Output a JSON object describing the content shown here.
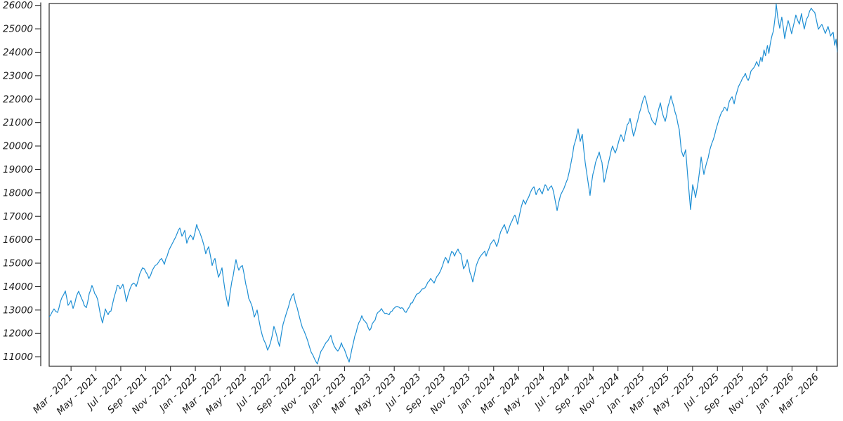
{
  "chart_data": {
    "type": "line",
    "title": "",
    "legend": null,
    "grid": false,
    "line_color": "#1E8FD4",
    "frame_color": "#2b2b2b",
    "text_color": "#1a1a1a",
    "x_axis": {
      "unit": "months_since_2021_01",
      "tick_step_months": 2,
      "first_tick_t": 2,
      "tick_labels": [
        "Mar - 2021",
        "May - 2021",
        "Jul - 2021",
        "Sep - 2021",
        "Nov - 2021",
        "Jan - 2022",
        "Mar - 2022",
        "May - 2022",
        "Jul - 2022",
        "Sep - 2022",
        "Nov - 2022",
        "Jan - 2023",
        "Mar - 2023",
        "May - 2023",
        "Jul - 2023",
        "Sep - 2023",
        "Nov - 2023",
        "Jan - 2024",
        "Mar - 2024",
        "May - 2024",
        "Jul - 2024",
        "Sep - 2024",
        "Nov - 2024",
        "Jan - 2025",
        "Mar - 2025",
        "May - 2025",
        "Jul - 2025",
        "Sep - 2025",
        "Nov - 2025",
        "Jan - 2026",
        "Mar - 2026"
      ]
    },
    "y_axis": {
      "ticks": [
        11000,
        12000,
        13000,
        14000,
        15000,
        16000,
        17000,
        18000,
        19000,
        20000,
        21000,
        22000,
        23000,
        24000,
        25000,
        26000
      ]
    },
    "xlim": [
      0.24,
      63.65
    ],
    "ylim": [
      10600,
      26080
    ],
    "noise_amplitude": 60,
    "noise_seed": 42,
    "points": [
      [
        0.24,
        12700
      ],
      [
        0.63,
        13050
      ],
      [
        0.92,
        12900
      ],
      [
        1.14,
        13350
      ],
      [
        1.54,
        13815
      ],
      [
        1.76,
        13200
      ],
      [
        1.99,
        13400
      ],
      [
        2.16,
        13070
      ],
      [
        2.44,
        13600
      ],
      [
        2.61,
        13800
      ],
      [
        2.84,
        13500
      ],
      [
        3.06,
        13200
      ],
      [
        3.23,
        13100
      ],
      [
        3.46,
        13700
      ],
      [
        3.68,
        14050
      ],
      [
        3.91,
        13700
      ],
      [
        4.14,
        13450
      ],
      [
        4.36,
        12800
      ],
      [
        4.53,
        12450
      ],
      [
        4.76,
        13050
      ],
      [
        4.98,
        12800
      ],
      [
        5.21,
        12950
      ],
      [
        5.49,
        13600
      ],
      [
        5.72,
        14060
      ],
      [
        5.94,
        13900
      ],
      [
        6.17,
        14100
      ],
      [
        6.45,
        13360
      ],
      [
        6.74,
        13900
      ],
      [
        7.02,
        14150
      ],
      [
        7.24,
        14000
      ],
      [
        7.53,
        14550
      ],
      [
        7.75,
        14800
      ],
      [
        8.04,
        14600
      ],
      [
        8.26,
        14350
      ],
      [
        8.54,
        14700
      ],
      [
        8.77,
        14900
      ],
      [
        9.05,
        15050
      ],
      [
        9.28,
        15200
      ],
      [
        9.51,
        14950
      ],
      [
        9.73,
        15300
      ],
      [
        10.01,
        15700
      ],
      [
        10.3,
        16000
      ],
      [
        10.52,
        16250
      ],
      [
        10.75,
        16500
      ],
      [
        10.92,
        16150
      ],
      [
        11.15,
        16400
      ],
      [
        11.31,
        15850
      ],
      [
        11.6,
        16200
      ],
      [
        11.82,
        16000
      ],
      [
        12.11,
        16650
      ],
      [
        12.33,
        16350
      ],
      [
        12.56,
        16000
      ],
      [
        12.84,
        15400
      ],
      [
        13.07,
        15700
      ],
      [
        13.35,
        14900
      ],
      [
        13.58,
        15200
      ],
      [
        13.86,
        14400
      ],
      [
        14.14,
        14800
      ],
      [
        14.37,
        13900
      ],
      [
        14.65,
        13160
      ],
      [
        14.93,
        14200
      ],
      [
        15.27,
        15150
      ],
      [
        15.5,
        14700
      ],
      [
        15.78,
        14900
      ],
      [
        16.06,
        14100
      ],
      [
        16.29,
        13500
      ],
      [
        16.57,
        13150
      ],
      [
        16.74,
        12700
      ],
      [
        16.97,
        13000
      ],
      [
        17.25,
        12200
      ],
      [
        17.53,
        11700
      ],
      [
        17.81,
        11290
      ],
      [
        18.04,
        11600
      ],
      [
        18.32,
        12300
      ],
      [
        18.55,
        11900
      ],
      [
        18.77,
        11450
      ],
      [
        19.06,
        12400
      ],
      [
        19.34,
        12900
      ],
      [
        19.62,
        13400
      ],
      [
        19.9,
        13700
      ],
      [
        20.19,
        13100
      ],
      [
        20.47,
        12500
      ],
      [
        20.75,
        12100
      ],
      [
        21.03,
        11700
      ],
      [
        21.32,
        11200
      ],
      [
        21.6,
        10900
      ],
      [
        21.82,
        10700
      ],
      [
        22.11,
        11250
      ],
      [
        22.39,
        11500
      ],
      [
        22.67,
        11700
      ],
      [
        22.9,
        11920
      ],
      [
        23.18,
        11450
      ],
      [
        23.46,
        11250
      ],
      [
        23.75,
        11600
      ],
      [
        23.97,
        11350
      ],
      [
        24.2,
        11000
      ],
      [
        24.37,
        10780
      ],
      [
        24.71,
        11600
      ],
      [
        25.05,
        12300
      ],
      [
        25.39,
        12760
      ],
      [
        25.67,
        12500
      ],
      [
        26.01,
        12130
      ],
      [
        26.35,
        12500
      ],
      [
        26.69,
        12900
      ],
      [
        26.97,
        13060
      ],
      [
        27.25,
        12850
      ],
      [
        27.59,
        12800
      ],
      [
        27.93,
        13050
      ],
      [
        28.27,
        13150
      ],
      [
        28.61,
        13100
      ],
      [
        28.95,
        12900
      ],
      [
        29.23,
        13150
      ],
      [
        29.57,
        13450
      ],
      [
        29.91,
        13700
      ],
      [
        30.25,
        13900
      ],
      [
        30.59,
        14050
      ],
      [
        30.93,
        14350
      ],
      [
        31.21,
        14150
      ],
      [
        31.55,
        14500
      ],
      [
        31.89,
        14900
      ],
      [
        32.12,
        15250
      ],
      [
        32.34,
        15000
      ],
      [
        32.62,
        15500
      ],
      [
        32.85,
        15300
      ],
      [
        33.13,
        15600
      ],
      [
        33.36,
        15400
      ],
      [
        33.58,
        14760
      ],
      [
        33.87,
        15150
      ],
      [
        34.09,
        14600
      ],
      [
        34.32,
        14200
      ],
      [
        34.6,
        14900
      ],
      [
        34.88,
        15250
      ],
      [
        35.28,
        15510
      ],
      [
        35.39,
        15300
      ],
      [
        35.73,
        15800
      ],
      [
        36.01,
        16000
      ],
      [
        36.24,
        15710
      ],
      [
        36.58,
        16360
      ],
      [
        36.86,
        16650
      ],
      [
        37.09,
        16270
      ],
      [
        37.37,
        16700
      ],
      [
        37.71,
        17050
      ],
      [
        37.93,
        16660
      ],
      [
        38.22,
        17400
      ],
      [
        38.39,
        17700
      ],
      [
        38.56,
        17510
      ],
      [
        38.95,
        18010
      ],
      [
        39.24,
        18260
      ],
      [
        39.41,
        17920
      ],
      [
        39.69,
        18200
      ],
      [
        39.91,
        17950
      ],
      [
        40.14,
        18350
      ],
      [
        40.37,
        18100
      ],
      [
        40.65,
        18300
      ],
      [
        40.87,
        17900
      ],
      [
        41.1,
        17240
      ],
      [
        41.38,
        17900
      ],
      [
        41.66,
        18200
      ],
      [
        41.95,
        18600
      ],
      [
        42.23,
        19300
      ],
      [
        42.45,
        20000
      ],
      [
        42.62,
        20300
      ],
      [
        42.79,
        20730
      ],
      [
        42.96,
        20200
      ],
      [
        43.13,
        20500
      ],
      [
        43.36,
        19300
      ],
      [
        43.58,
        18500
      ],
      [
        43.75,
        17890
      ],
      [
        43.98,
        18800
      ],
      [
        44.2,
        19300
      ],
      [
        44.49,
        19740
      ],
      [
        44.71,
        19300
      ],
      [
        44.88,
        18450
      ],
      [
        45.11,
        19000
      ],
      [
        45.33,
        19500
      ],
      [
        45.56,
        20000
      ],
      [
        45.78,
        19700
      ],
      [
        46.01,
        20100
      ],
      [
        46.24,
        20480
      ],
      [
        46.46,
        20200
      ],
      [
        46.74,
        20900
      ],
      [
        46.97,
        21180
      ],
      [
        47.25,
        20420
      ],
      [
        47.48,
        20900
      ],
      [
        47.71,
        21400
      ],
      [
        47.93,
        21800
      ],
      [
        48.16,
        22140
      ],
      [
        48.44,
        21500
      ],
      [
        48.73,
        21100
      ],
      [
        49.01,
        20900
      ],
      [
        49.24,
        21500
      ],
      [
        49.41,
        21840
      ],
      [
        49.63,
        21300
      ],
      [
        49.8,
        21050
      ],
      [
        50.03,
        21700
      ],
      [
        50.26,
        22140
      ],
      [
        50.48,
        21700
      ],
      [
        50.71,
        21260
      ],
      [
        50.93,
        20700
      ],
      [
        51.1,
        19800
      ],
      [
        51.27,
        19540
      ],
      [
        51.44,
        19840
      ],
      [
        51.61,
        18700
      ],
      [
        51.84,
        17290
      ],
      [
        52.01,
        18350
      ],
      [
        52.24,
        17800
      ],
      [
        52.46,
        18500
      ],
      [
        52.69,
        19530
      ],
      [
        52.91,
        18790
      ],
      [
        53.14,
        19300
      ],
      [
        53.37,
        19800
      ],
      [
        53.54,
        20100
      ],
      [
        53.76,
        20430
      ],
      [
        53.99,
        20900
      ],
      [
        54.16,
        21200
      ],
      [
        54.33,
        21440
      ],
      [
        54.55,
        21650
      ],
      [
        54.78,
        21500
      ],
      [
        54.95,
        21900
      ],
      [
        55.18,
        22100
      ],
      [
        55.35,
        21800
      ],
      [
        55.57,
        22300
      ],
      [
        55.8,
        22650
      ],
      [
        56.02,
        22900
      ],
      [
        56.25,
        23100
      ],
      [
        56.48,
        22800
      ],
      [
        56.7,
        23200
      ],
      [
        56.93,
        23340
      ],
      [
        57.15,
        23600
      ],
      [
        57.32,
        23400
      ],
      [
        57.49,
        23790
      ],
      [
        57.6,
        23600
      ],
      [
        57.75,
        24100
      ],
      [
        57.87,
        23850
      ],
      [
        58.02,
        24290
      ],
      [
        58.14,
        23950
      ],
      [
        58.32,
        24550
      ],
      [
        58.5,
        24900
      ],
      [
        58.62,
        25400
      ],
      [
        58.68,
        25700
      ],
      [
        58.73,
        26060
      ],
      [
        58.85,
        25500
      ],
      [
        59.01,
        25030
      ],
      [
        59.18,
        25500
      ],
      [
        59.41,
        24580
      ],
      [
        59.69,
        25350
      ],
      [
        59.97,
        24790
      ],
      [
        60.31,
        25590
      ],
      [
        60.59,
        25200
      ],
      [
        60.76,
        25650
      ],
      [
        60.99,
        24990
      ],
      [
        61.16,
        25400
      ],
      [
        61.55,
        25880
      ],
      [
        61.83,
        25700
      ],
      [
        62.12,
        24980
      ],
      [
        62.4,
        25190
      ],
      [
        62.68,
        24800
      ],
      [
        62.9,
        25100
      ],
      [
        63.1,
        24690
      ],
      [
        63.31,
        24850
      ],
      [
        63.43,
        24300
      ],
      [
        63.54,
        24560
      ],
      [
        63.65,
        24000
      ]
    ]
  }
}
